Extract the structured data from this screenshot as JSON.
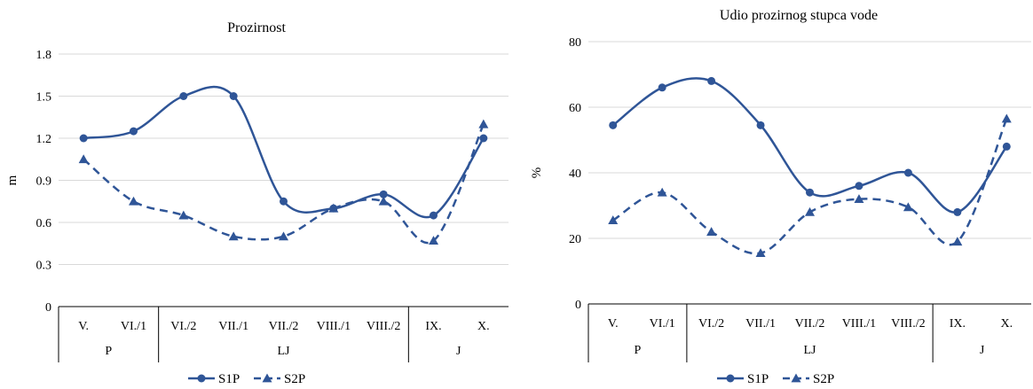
{
  "colors": {
    "series": "#2F5597",
    "grid": "#D9D9D9",
    "axis": "#000000"
  },
  "chart_data": [
    {
      "type": "line",
      "title": "Prozirnost",
      "ylabel": "m",
      "xlabel": "",
      "ylim": [
        0,
        1.8
      ],
      "yticks": [
        "0",
        "0.3",
        "0.6",
        "0.9",
        "1.2",
        "1.5",
        "1.8"
      ],
      "categories": [
        "V.",
        "VI./1",
        "VI./2",
        "VII./1",
        "VII./2",
        "VIII./1",
        "VIII./2",
        "IX.",
        "X."
      ],
      "groups": [
        {
          "label": "P",
          "span": 2
        },
        {
          "label": "LJ",
          "span": 5
        },
        {
          "label": "J",
          "span": 2
        }
      ],
      "grid": true,
      "legend_position": "bottom",
      "series": [
        {
          "name": "S1P",
          "marker": "circle",
          "dash": "solid",
          "values": [
            1.2,
            1.25,
            1.5,
            1.5,
            0.75,
            0.7,
            0.8,
            0.65,
            1.2
          ]
        },
        {
          "name": "S2P",
          "marker": "triangle",
          "dash": "dashed",
          "values": [
            1.05,
            0.75,
            0.65,
            0.5,
            0.5,
            0.7,
            0.75,
            0.47,
            1.3
          ]
        }
      ]
    },
    {
      "type": "line",
      "title": "Udio prozirnog stupca vode",
      "ylabel": "%",
      "xlabel": "",
      "ylim": [
        0,
        80
      ],
      "yticks": [
        "0",
        "20",
        "40",
        "60",
        "80"
      ],
      "categories": [
        "V.",
        "VI./1",
        "VI./2",
        "VII./1",
        "VII./2",
        "VIII./1",
        "VIII./2",
        "IX.",
        "X."
      ],
      "groups": [
        {
          "label": "P",
          "span": 2
        },
        {
          "label": "LJ",
          "span": 5
        },
        {
          "label": "J",
          "span": 2
        }
      ],
      "grid": true,
      "legend_position": "bottom",
      "series": [
        {
          "name": "S1P",
          "marker": "circle",
          "dash": "solid",
          "values": [
            54.5,
            66,
            68,
            54.5,
            34,
            36,
            40,
            28,
            48
          ]
        },
        {
          "name": "S2P",
          "marker": "triangle",
          "dash": "dashed",
          "values": [
            25.5,
            34,
            22,
            15.5,
            28,
            32,
            29.5,
            19,
            56.5
          ]
        }
      ]
    }
  ]
}
